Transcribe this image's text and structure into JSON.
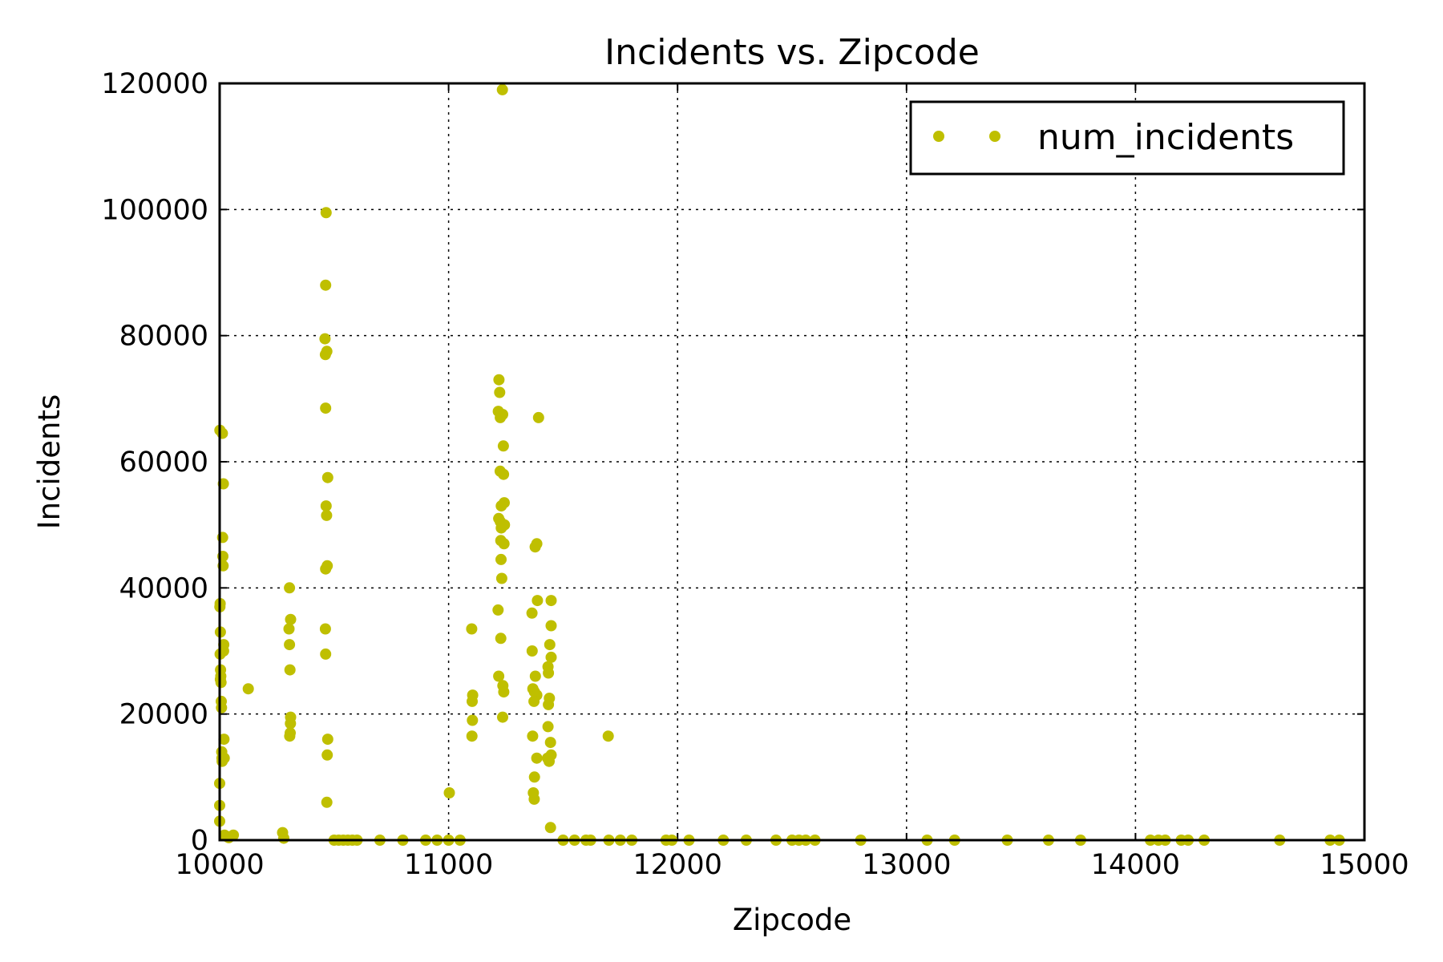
{
  "chart_data": {
    "type": "scatter",
    "title": "Incidents vs. Zipcode",
    "xlabel": "Zipcode",
    "ylabel": "Incidents",
    "xlim": [
      10000,
      15000
    ],
    "ylim": [
      0,
      120000
    ],
    "xticks": [
      10000,
      11000,
      12000,
      13000,
      14000,
      15000
    ],
    "yticks": [
      0,
      20000,
      40000,
      60000,
      80000,
      100000,
      120000
    ],
    "grid": true,
    "legend_position": "top-right",
    "series": [
      {
        "name": "num_incidents",
        "color": "#bfbf00",
        "points": [
          [
            10001,
            65000
          ],
          [
            10002,
            37500
          ],
          [
            10003,
            33000
          ],
          [
            10004,
            27000
          ],
          [
            10005,
            26000
          ],
          [
            10006,
            25000
          ],
          [
            10007,
            22000
          ],
          [
            10008,
            21000
          ],
          [
            10009,
            14000
          ],
          [
            10010,
            13000
          ],
          [
            10011,
            12500
          ],
          [
            10012,
            64500
          ],
          [
            10013,
            48000
          ],
          [
            10014,
            45000
          ],
          [
            10015,
            43500
          ],
          [
            10016,
            56500
          ],
          [
            10017,
            30000
          ],
          [
            10018,
            31000
          ],
          [
            10019,
            16000
          ],
          [
            10020,
            13000
          ],
          [
            10000,
            9000
          ],
          [
            10000,
            5500
          ],
          [
            10000,
            3000
          ],
          [
            10001,
            37000
          ],
          [
            10002,
            29500
          ],
          [
            10003,
            25500
          ],
          [
            10021,
            800
          ],
          [
            10030,
            600
          ],
          [
            10040,
            400
          ],
          [
            10060,
            800
          ],
          [
            10125,
            24000
          ],
          [
            10275,
            1200
          ],
          [
            10280,
            300
          ],
          [
            10305,
            40000
          ],
          [
            10303,
            33500
          ],
          [
            10305,
            31000
          ],
          [
            10307,
            27000
          ],
          [
            10310,
            35000
          ],
          [
            10310,
            19500
          ],
          [
            10309,
            18500
          ],
          [
            10308,
            17000
          ],
          [
            10306,
            16500
          ],
          [
            10465,
            99500
          ],
          [
            10463,
            88000
          ],
          [
            10460,
            79500
          ],
          [
            10462,
            77000
          ],
          [
            10468,
            77500
          ],
          [
            10463,
            68500
          ],
          [
            10472,
            57500
          ],
          [
            10465,
            53000
          ],
          [
            10467,
            51500
          ],
          [
            10470,
            43500
          ],
          [
            10463,
            43000
          ],
          [
            10462,
            33500
          ],
          [
            10463,
            29500
          ],
          [
            10472,
            16000
          ],
          [
            10470,
            13500
          ],
          [
            10468,
            6000
          ],
          [
            10500,
            0
          ],
          [
            10520,
            0
          ],
          [
            10540,
            0
          ],
          [
            10560,
            0
          ],
          [
            10580,
            0
          ],
          [
            10600,
            0
          ],
          [
            10700,
            0
          ],
          [
            10800,
            0
          ],
          [
            10900,
            0
          ],
          [
            10950,
            0
          ],
          [
            11000,
            0
          ],
          [
            11050,
            0
          ],
          [
            11003,
            7500
          ],
          [
            11101,
            33500
          ],
          [
            11105,
            23000
          ],
          [
            11103,
            22000
          ],
          [
            11104,
            19000
          ],
          [
            11102,
            16500
          ],
          [
            11235,
            119000
          ],
          [
            11220,
            73000
          ],
          [
            11223,
            71000
          ],
          [
            11217,
            68000
          ],
          [
            11236,
            67500
          ],
          [
            11226,
            67000
          ],
          [
            11239,
            62500
          ],
          [
            11225,
            58500
          ],
          [
            11240,
            58000
          ],
          [
            11243,
            53500
          ],
          [
            11230,
            53000
          ],
          [
            11219,
            51000
          ],
          [
            11226,
            50500
          ],
          [
            11234,
            50000
          ],
          [
            11230,
            49500
          ],
          [
            11244,
            50000
          ],
          [
            11228,
            47500
          ],
          [
            11242,
            47000
          ],
          [
            11229,
            44500
          ],
          [
            11232,
            41500
          ],
          [
            11216,
            36500
          ],
          [
            11228,
            32000
          ],
          [
            11219,
            26000
          ],
          [
            11237,
            24500
          ],
          [
            11241,
            23500
          ],
          [
            11236,
            19500
          ],
          [
            11393,
            67000
          ],
          [
            11385,
            47000
          ],
          [
            11378,
            46500
          ],
          [
            11388,
            38000
          ],
          [
            11448,
            38000
          ],
          [
            11364,
            36000
          ],
          [
            11448,
            34000
          ],
          [
            11365,
            30000
          ],
          [
            11442,
            31000
          ],
          [
            11448,
            29000
          ],
          [
            11434,
            27500
          ],
          [
            11379,
            26000
          ],
          [
            11436,
            26500
          ],
          [
            11368,
            24000
          ],
          [
            11375,
            23500
          ],
          [
            11385,
            23000
          ],
          [
            11440,
            22500
          ],
          [
            11373,
            22000
          ],
          [
            11436,
            21500
          ],
          [
            11434,
            18000
          ],
          [
            11367,
            16500
          ],
          [
            11445,
            15500
          ],
          [
            11385,
            13000
          ],
          [
            11432,
            13000
          ],
          [
            11448,
            13500
          ],
          [
            11439,
            12500
          ],
          [
            11375,
            10000
          ],
          [
            11370,
            7500
          ],
          [
            11374,
            6500
          ],
          [
            11445,
            2000
          ],
          [
            11500,
            0
          ],
          [
            11550,
            0
          ],
          [
            11600,
            0
          ],
          [
            11620,
            0
          ],
          [
            11697,
            16500
          ],
          [
            11700,
            0
          ],
          [
            11750,
            0
          ],
          [
            11800,
            0
          ],
          [
            11950,
            0
          ],
          [
            11975,
            0
          ],
          [
            12050,
            0
          ],
          [
            12200,
            0
          ],
          [
            12300,
            0
          ],
          [
            12430,
            0
          ],
          [
            12500,
            0
          ],
          [
            12530,
            0
          ],
          [
            12560,
            0
          ],
          [
            12600,
            0
          ],
          [
            12800,
            0
          ],
          [
            13090,
            0
          ],
          [
            13210,
            0
          ],
          [
            13440,
            0
          ],
          [
            13620,
            0
          ],
          [
            13760,
            0
          ],
          [
            14065,
            0
          ],
          [
            14100,
            0
          ],
          [
            14130,
            0
          ],
          [
            14200,
            0
          ],
          [
            14230,
            0
          ],
          [
            14300,
            0
          ],
          [
            14630,
            0
          ],
          [
            14850,
            0
          ],
          [
            14890,
            0
          ]
        ]
      }
    ]
  }
}
